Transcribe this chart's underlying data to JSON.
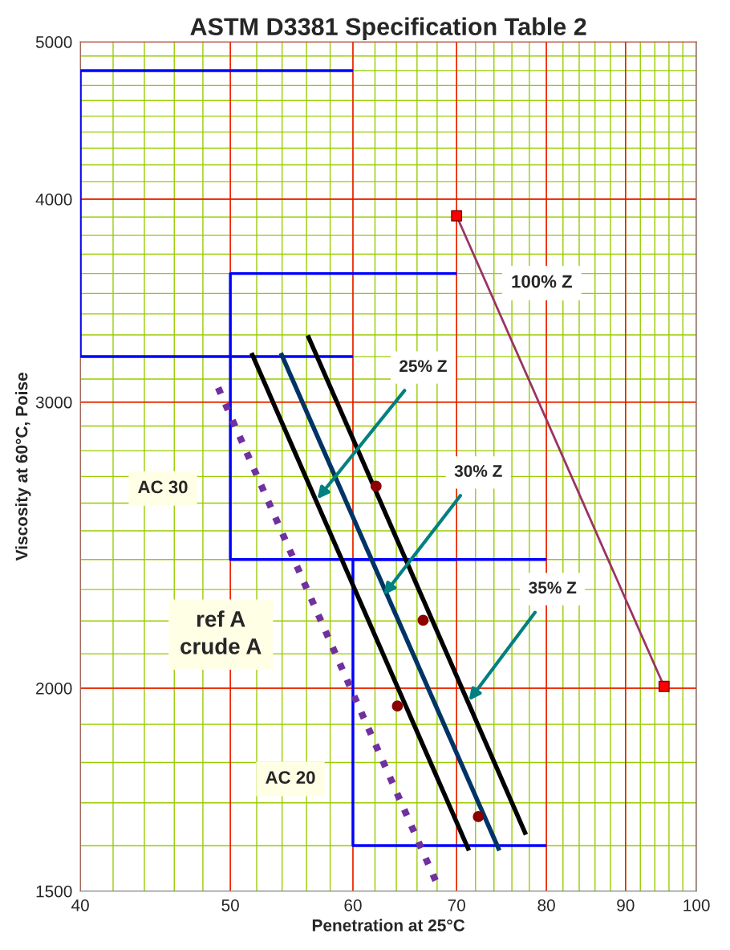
{
  "chart_data": {
    "type": "line",
    "title": "ASTM D3381 Specification Table 2",
    "xlabel": "Penetration at 25°C",
    "ylabel": "Viscosity at 60°C, Poise",
    "log": "xy",
    "grid": true,
    "xlim": [
      40,
      100
    ],
    "xticks": [
      40,
      50,
      60,
      70,
      80,
      90,
      100
    ],
    "ylim": [
      1500,
      5000
    ],
    "yticks": [
      1500,
      2000,
      3000,
      4000,
      5000
    ],
    "series": [
      {
        "color": "#0000ff",
        "x": [
          60,
          40,
          40,
          60
        ],
        "values": [
          4800,
          4800,
          3200,
          3200
        ]
      },
      {
        "color": "#0000ff",
        "x": [
          70,
          50,
          50,
          70
        ],
        "values": [
          3600,
          3600,
          2400,
          2400
        ]
      },
      {
        "color": "#0000ff",
        "x": [
          80,
          60,
          60,
          80
        ],
        "values": [
          2400,
          2400,
          1600,
          1600
        ]
      },
      {
        "color": "#000000",
        "x": [
          51.6,
          71.3
        ],
        "values": [
          3216,
          1589
        ]
      },
      {
        "color": "#003366",
        "x": [
          53.9,
          74.6
        ],
        "values": [
          3216,
          1589
        ]
      },
      {
        "color": "#000000",
        "x": [
          56.1,
          77.6
        ],
        "values": [
          3298,
          1625
        ]
      },
      {
        "color": "#7030a0",
        "line_style": "dotted",
        "x": [
          49.1,
          68.0
        ],
        "values": [
          3062,
          1515
        ]
      },
      {
        "type": "scatter",
        "color": "#8b0000",
        "marker": "circle",
        "x": [
          62.1,
          66.6,
          64.1,
          72.3
        ],
        "values": [
          2663,
          2202,
          1950,
          1667
        ]
      },
      {
        "color": "#993366",
        "x": [
          70,
          95.3
        ],
        "values": [
          3907,
          2005
        ]
      },
      {
        "type": "scatter",
        "color": "#ff0000",
        "marker": "square",
        "x": [
          70,
          95.3
        ],
        "values": [
          3907,
          2005
        ]
      }
    ],
    "annotations": [
      "100% Z",
      "AC 30",
      "ref A\ncrude A",
      "AC 20",
      {
        "text": "25% Z",
        "x": 56.9,
        "y": 2615
      },
      {
        "text": "30% Z",
        "x": 62.8,
        "y": 2282
      },
      {
        "text": "35% Z",
        "x": 71.3,
        "y": 1965
      }
    ]
  }
}
